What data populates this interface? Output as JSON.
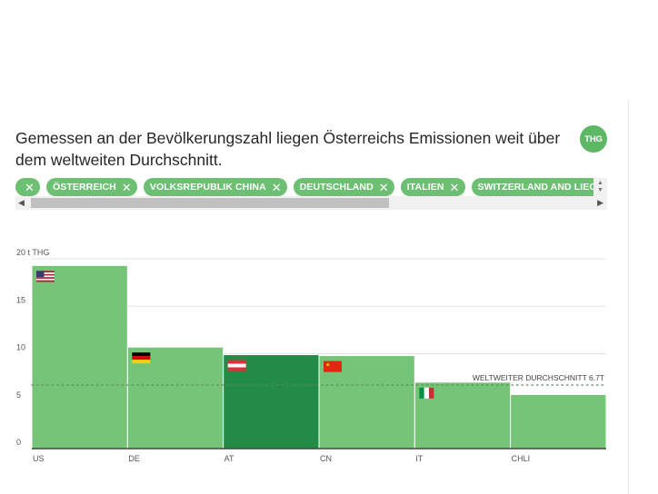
{
  "header": {
    "title": "Gemessen an der Bevölkerungszahl liegen Österreichs Emissionen weit über dem weltweiten Durchschnitt.",
    "badge": "THG"
  },
  "chips": [
    {
      "label": ""
    },
    {
      "label": "ÖSTERREICH"
    },
    {
      "label": "VOLKSREPUBLIK CHINA"
    },
    {
      "label": "DEUTSCHLAND"
    },
    {
      "label": "ITALIEN"
    },
    {
      "label": "SWITZERLAND AND LIECHT"
    }
  ],
  "chip_close_glyph": "✕",
  "scroll": {
    "up": "▲",
    "down": "▼",
    "left": "◀",
    "right": "▶"
  },
  "colors": {
    "bar": "#76c477",
    "bar_highlight": "#228b45",
    "bar_border": "#ffffff",
    "axis": "#444444",
    "grid": "#e3e3e3",
    "avg_line": "#5a8a5e"
  },
  "chart_data": {
    "type": "bar",
    "categories": [
      "US",
      "DE",
      "AT",
      "CN",
      "IT",
      "CHLI"
    ],
    "values": [
      19.3,
      10.7,
      9.9,
      9.8,
      7.0,
      5.7
    ],
    "flags": [
      "us",
      "de",
      "at",
      "cn",
      "it",
      null
    ],
    "highlight": "AT",
    "ylim": [
      0,
      20
    ],
    "yticks": [
      {
        "value": 0,
        "label": "0"
      },
      {
        "value": 5,
        "label": "5"
      },
      {
        "value": 10,
        "label": "10"
      },
      {
        "value": 15,
        "label": "15"
      },
      {
        "value": 20,
        "label": "20 t THG"
      }
    ],
    "reference_line": {
      "value": 6.7,
      "label": "WELTWEITER DURCHSCHNITT 6.7T"
    },
    "grid": true
  }
}
